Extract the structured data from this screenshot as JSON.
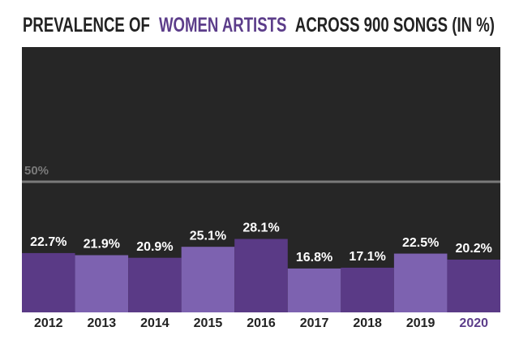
{
  "chart_data": {
    "type": "bar",
    "title_parts": [
      {
        "text": "PREVALENCE OF",
        "color": "#222222"
      },
      {
        "text": "WOMEN ARTISTS",
        "color": "#5c3d8a"
      },
      {
        "text": "ACROSS 900 SONGS (IN %)",
        "color": "#222222"
      }
    ],
    "categories": [
      "2012",
      "2013",
      "2014",
      "2015",
      "2016",
      "2017",
      "2018",
      "2019",
      "2020"
    ],
    "values": [
      22.7,
      21.9,
      20.9,
      25.1,
      28.1,
      16.8,
      17.1,
      22.5,
      20.2
    ],
    "value_labels": [
      "22.7%",
      "21.9%",
      "20.9%",
      "25.1%",
      "28.1%",
      "16.8%",
      "17.1%",
      "22.5%",
      "20.2%"
    ],
    "colors": [
      "#5a3a86",
      "#7d62b0",
      "#5a3a86",
      "#7d62b0",
      "#5a3a86",
      "#7d62b0",
      "#5a3a86",
      "#7d62b0",
      "#5a3a86"
    ],
    "label_colors": [
      "#222222",
      "#222222",
      "#222222",
      "#222222",
      "#222222",
      "#222222",
      "#222222",
      "#222222",
      "#5c3d8a"
    ],
    "ylim": [
      0,
      100
    ],
    "reference_line": {
      "value": 50,
      "label": "50%",
      "color": "#7a7a7a"
    },
    "background": "#262626"
  }
}
